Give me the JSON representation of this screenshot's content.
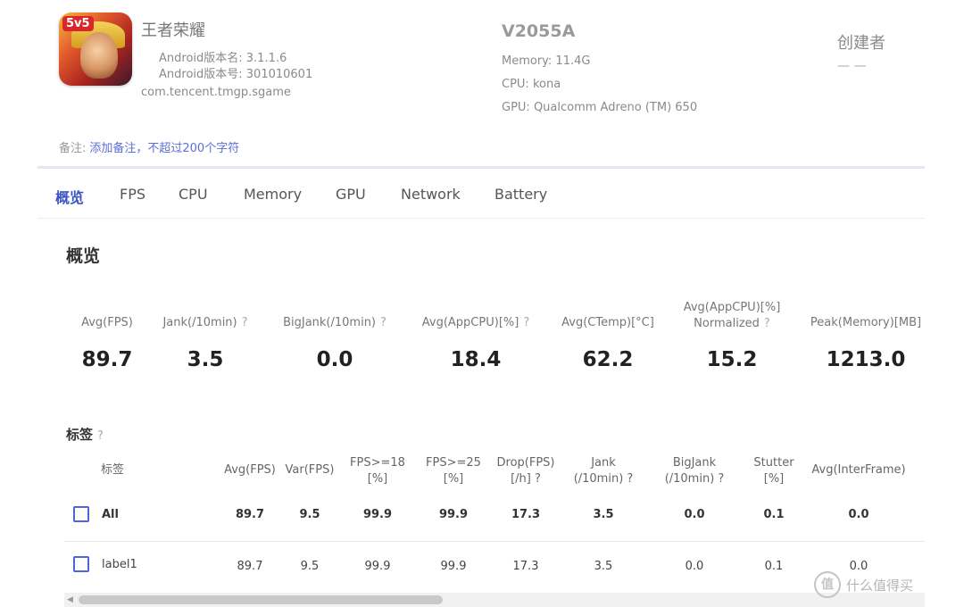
{
  "app": {
    "name": "王者荣耀",
    "icon_badge": "5v5",
    "version_name": "Android版本名: 3.1.1.6",
    "version_code": "Android版本号: 301010601",
    "package": "com.tencent.tmgp.sgame"
  },
  "device": {
    "model": "V2055A",
    "memory": "Memory: 11.4G",
    "cpu": "CPU: kona",
    "gpu": "GPU: Qualcomm Adreno (TM) 650"
  },
  "creator": {
    "label": "创建者",
    "value": "— —"
  },
  "note": {
    "label": "备注:",
    "link": "添加备注，不超过200个字符"
  },
  "tabs": [
    "概览",
    "FPS",
    "CPU",
    "Memory",
    "GPU",
    "Network",
    "Battery"
  ],
  "overview": {
    "title": "概览",
    "metrics": [
      {
        "label": "Avg(FPS)",
        "help": "",
        "value": "89.7"
      },
      {
        "label": "Jank(/10min)",
        "help": "?",
        "value": "3.5"
      },
      {
        "label": "BigJank(/10min)",
        "help": "?",
        "value": "0.0"
      },
      {
        "label": "Avg(AppCPU)[%]",
        "help": "?",
        "value": "18.4"
      },
      {
        "label": "Avg(CTemp)[°C]",
        "help": "",
        "value": "62.2"
      },
      {
        "label": "Avg(AppCPU)[%]",
        "label2": "Normalized",
        "help": "?",
        "value": "15.2"
      },
      {
        "label": "Peak(Memory)[MB]",
        "help": "",
        "value": "1213.0"
      }
    ]
  },
  "labels_section": {
    "title": "标签",
    "help": "?",
    "columns": [
      {
        "line1": "标签",
        "line2": ""
      },
      {
        "line1": "Avg(FPS)",
        "line2": ""
      },
      {
        "line1": "Var(FPS)",
        "line2": ""
      },
      {
        "line1": "FPS>=18",
        "line2": "[%]"
      },
      {
        "line1": "FPS>=25",
        "line2": "[%]"
      },
      {
        "line1": "Drop(FPS)",
        "line2": "[/h] ?"
      },
      {
        "line1": "Jank",
        "line2": "(/10min) ?"
      },
      {
        "line1": "BigJank",
        "line2": "(/10min) ?"
      },
      {
        "line1": "Stutter",
        "line2": "[%]"
      },
      {
        "line1": "Avg(InterFrame)",
        "line2": ""
      }
    ],
    "rows": [
      {
        "name": "All",
        "values": [
          "89.7",
          "9.5",
          "99.9",
          "99.9",
          "17.3",
          "3.5",
          "0.0",
          "0.1",
          "0.0"
        ]
      },
      {
        "name": "label1",
        "values": [
          "89.7",
          "9.5",
          "99.9",
          "99.9",
          "17.3",
          "3.5",
          "0.0",
          "0.1",
          "0.0"
        ]
      }
    ]
  },
  "watermark": {
    "icon": "值",
    "text": "什么值得买"
  },
  "colors": {
    "accent": "#3b56c4",
    "checkbox": "#4a68d8",
    "link": "#5b6fd6"
  }
}
